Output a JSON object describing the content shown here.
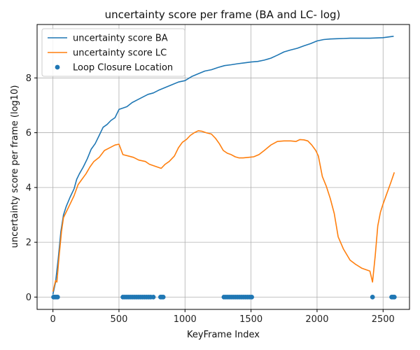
{
  "chart_data": {
    "type": "line",
    "title": "uncertainty score per frame (BA and LC- log)",
    "xlabel": "KeyFrame Index",
    "ylabel": "uncertainty score per frame (log10)",
    "xlim": [
      -120,
      2700
    ],
    "ylim": [
      -0.45,
      9.95
    ],
    "xticks": [
      0,
      500,
      1000,
      1500,
      2000,
      2500
    ],
    "yticks": [
      0,
      2,
      4,
      6,
      8
    ],
    "grid": true,
    "legend_position": "top-left",
    "series": [
      {
        "name": "uncertainty score BA",
        "kind": "line",
        "color": "#1f77b4",
        "x": [
          0,
          20,
          40,
          60,
          80,
          100,
          130,
          160,
          180,
          200,
          230,
          260,
          290,
          320,
          350,
          380,
          410,
          440,
          470,
          500,
          530,
          560,
          600,
          640,
          680,
          720,
          760,
          800,
          850,
          900,
          950,
          1000,
          1050,
          1100,
          1150,
          1200,
          1250,
          1300,
          1350,
          1400,
          1450,
          1500,
          1550,
          1600,
          1650,
          1700,
          1750,
          1800,
          1850,
          1900,
          1950,
          2000,
          2050,
          2100,
          2150,
          2200,
          2250,
          2300,
          2350,
          2400,
          2450,
          2500,
          2550,
          2580
        ],
        "y": [
          0.1,
          0.55,
          1.4,
          2.4,
          3.0,
          3.3,
          3.65,
          3.95,
          4.3,
          4.5,
          4.75,
          5.05,
          5.4,
          5.6,
          5.9,
          6.2,
          6.3,
          6.45,
          6.55,
          6.85,
          6.9,
          6.95,
          7.1,
          7.2,
          7.3,
          7.4,
          7.45,
          7.55,
          7.65,
          7.75,
          7.85,
          7.9,
          8.05,
          8.15,
          8.25,
          8.3,
          8.38,
          8.45,
          8.48,
          8.52,
          8.55,
          8.58,
          8.6,
          8.65,
          8.72,
          8.83,
          8.95,
          9.02,
          9.08,
          9.17,
          9.25,
          9.35,
          9.4,
          9.42,
          9.43,
          9.44,
          9.45,
          9.45,
          9.45,
          9.45,
          9.46,
          9.47,
          9.5,
          9.52
        ]
      },
      {
        "name": "uncertainty score LC",
        "kind": "line",
        "color": "#ff7f0e",
        "x": [
          0,
          20,
          30,
          45,
          65,
          80,
          100,
          130,
          160,
          190,
          220,
          250,
          280,
          310,
          350,
          390,
          430,
          470,
          500,
          530,
          570,
          610,
          650,
          700,
          730,
          770,
          820,
          850,
          880,
          920,
          950,
          980,
          1010,
          1040,
          1070,
          1100,
          1130,
          1160,
          1200,
          1230,
          1260,
          1290,
          1320,
          1350,
          1380,
          1410,
          1440,
          1480,
          1520,
          1560,
          1600,
          1650,
          1700,
          1750,
          1800,
          1840,
          1870,
          1900,
          1930,
          1960,
          1990,
          2010,
          2040,
          2070,
          2100,
          2130,
          2160,
          2200,
          2250,
          2290,
          2340,
          2400,
          2420,
          2440,
          2460,
          2480,
          2500,
          2530,
          2560,
          2585
        ],
        "y": [
          0.2,
          0.6,
          0.55,
          1.4,
          2.4,
          2.9,
          3.1,
          3.4,
          3.7,
          4.1,
          4.3,
          4.5,
          4.75,
          4.95,
          5.1,
          5.35,
          5.45,
          5.55,
          5.58,
          5.2,
          5.15,
          5.1,
          5.0,
          4.95,
          4.85,
          4.78,
          4.7,
          4.85,
          4.95,
          5.15,
          5.45,
          5.65,
          5.75,
          5.9,
          6.0,
          6.07,
          6.05,
          6.0,
          5.95,
          5.8,
          5.6,
          5.35,
          5.25,
          5.2,
          5.12,
          5.08,
          5.08,
          5.1,
          5.12,
          5.2,
          5.35,
          5.55,
          5.68,
          5.7,
          5.7,
          5.68,
          5.75,
          5.74,
          5.7,
          5.55,
          5.35,
          5.15,
          4.4,
          4.05,
          3.6,
          3.05,
          2.2,
          1.75,
          1.35,
          1.2,
          1.05,
          0.95,
          0.55,
          1.5,
          2.6,
          3.1,
          3.4,
          3.8,
          4.2,
          4.55
        ]
      },
      {
        "name": "Loop Closure Location",
        "kind": "scatter",
        "color": "#1f77b4",
        "x": [
          5,
          15,
          25,
          35,
          530,
          545,
          560,
          575,
          590,
          605,
          620,
          635,
          650,
          665,
          680,
          695,
          710,
          725,
          740,
          760,
          815,
          825,
          835,
          1295,
          1310,
          1325,
          1340,
          1355,
          1370,
          1385,
          1400,
          1415,
          1430,
          1445,
          1460,
          1475,
          1490,
          1505,
          2420,
          2565,
          2575,
          2585
        ],
        "y": [
          0,
          0,
          0,
          0,
          0,
          0,
          0,
          0,
          0,
          0,
          0,
          0,
          0,
          0,
          0,
          0,
          0,
          0,
          0,
          0,
          0,
          0,
          0,
          0,
          0,
          0,
          0,
          0,
          0,
          0,
          0,
          0,
          0,
          0,
          0,
          0,
          0,
          0,
          0,
          0,
          0,
          0
        ]
      }
    ]
  }
}
